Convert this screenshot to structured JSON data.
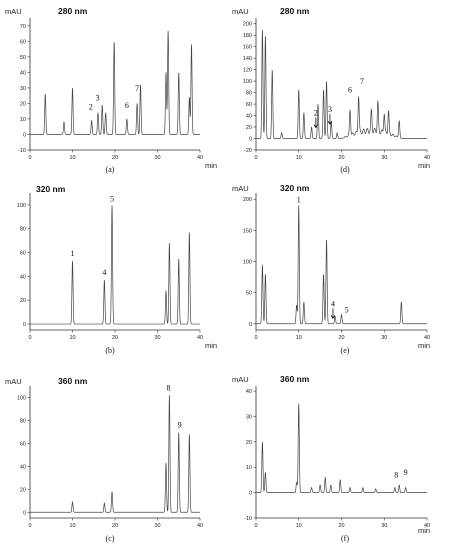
{
  "chart_data": [
    {
      "type": "line",
      "panel_label": "(a)",
      "wavelength_label": "280 nm",
      "ylabel": "mAU",
      "xlabel": "min",
      "xlim": [
        0,
        40
      ],
      "ylim": [
        -10,
        75
      ],
      "xticks": [
        0,
        10,
        20,
        30,
        40
      ],
      "yticks": [
        -10,
        0,
        10,
        20,
        30,
        40,
        50,
        60,
        70
      ],
      "grid": false,
      "baseline": 0,
      "peaks": [
        [
          3.6,
          26
        ],
        [
          8.0,
          8
        ],
        [
          10.0,
          30
        ],
        [
          14.5,
          9
        ],
        [
          16.0,
          14
        ],
        [
          17.0,
          19
        ],
        [
          17.8,
          14
        ],
        [
          19.8,
          60
        ],
        [
          22.8,
          10
        ],
        [
          25.2,
          20
        ],
        [
          26.0,
          32
        ],
        [
          32.0,
          40
        ],
        [
          32.5,
          67
        ],
        [
          35.0,
          40
        ],
        [
          37.5,
          24
        ],
        [
          38.0,
          58
        ]
      ],
      "annotations": [
        {
          "text": "2",
          "x": 14.3,
          "y": 16,
          "arrow": false
        },
        {
          "text": "3",
          "x": 15.9,
          "y": 22,
          "arrow": false
        },
        {
          "text": "6",
          "x": 22.8,
          "y": 17,
          "arrow": false
        },
        {
          "text": "7",
          "x": 25.2,
          "y": 28,
          "arrow": false
        }
      ]
    },
    {
      "type": "line",
      "panel_label": "(d)",
      "wavelength_label": "280 nm",
      "ylabel": "mAU",
      "xlabel": "min",
      "xlim": [
        0,
        40
      ],
      "ylim": [
        -20,
        210
      ],
      "xticks": [
        0,
        10,
        20,
        30,
        40
      ],
      "yticks": [
        -20,
        0,
        20,
        40,
        60,
        80,
        100,
        120,
        140,
        160,
        180,
        200
      ],
      "grid": false,
      "baseline": 0,
      "peaks": [
        [
          1.5,
          190
        ],
        [
          2.2,
          180
        ],
        [
          3.8,
          120
        ],
        [
          6.0,
          10
        ],
        [
          10.0,
          85
        ],
        [
          11.2,
          45
        ],
        [
          13.0,
          20
        ],
        [
          14.5,
          60
        ],
        [
          15.8,
          85
        ],
        [
          16.5,
          100
        ],
        [
          17.6,
          30
        ],
        [
          19.0,
          10
        ],
        [
          22.0,
          45
        ],
        [
          24.0,
          65
        ],
        [
          27.0,
          35
        ],
        [
          28.5,
          50
        ],
        [
          30.0,
          35
        ],
        [
          31.0,
          40
        ],
        [
          33.5,
          30
        ]
      ],
      "hump": {
        "from": 20,
        "to": 34,
        "height": 18
      },
      "annotations": [
        {
          "text": "2",
          "x": 14.0,
          "y": 40,
          "arrow": true
        },
        {
          "text": "3",
          "x": 17.3,
          "y": 46,
          "arrow": true
        },
        {
          "text": "6",
          "x": 22.0,
          "y": 80,
          "arrow": false
        },
        {
          "text": "7",
          "x": 24.8,
          "y": 95,
          "arrow": false
        }
      ]
    },
    {
      "type": "line",
      "panel_label": "(b)",
      "wavelength_label": "320 nm",
      "ylabel": "",
      "xlabel": "min",
      "xlim": [
        0,
        40
      ],
      "ylim": [
        -5,
        110
      ],
      "xticks": [
        0,
        10,
        20,
        30,
        40
      ],
      "yticks": [
        0,
        20,
        40,
        60,
        80,
        100
      ],
      "grid": false,
      "baseline": 0,
      "peaks": [
        [
          10.0,
          53
        ],
        [
          17.5,
          37
        ],
        [
          19.3,
          100
        ],
        [
          32.0,
          28
        ],
        [
          32.8,
          68
        ],
        [
          35.0,
          55
        ],
        [
          37.5,
          77
        ]
      ],
      "annotations": [
        {
          "text": "1",
          "x": 10.0,
          "y": 57,
          "arrow": false
        },
        {
          "text": "4",
          "x": 17.5,
          "y": 41,
          "arrow": false
        },
        {
          "text": "5",
          "x": 19.3,
          "y": 103,
          "arrow": false
        }
      ]
    },
    {
      "type": "line",
      "panel_label": "(e)",
      "wavelength_label": "320 nm",
      "ylabel": "mAU",
      "xlabel": "min",
      "xlim": [
        0,
        40
      ],
      "ylim": [
        -10,
        210
      ],
      "xticks": [
        0,
        10,
        20,
        30,
        40
      ],
      "yticks": [
        0,
        50,
        100,
        150,
        200
      ],
      "grid": false,
      "baseline": 0,
      "peaks": [
        [
          1.5,
          95
        ],
        [
          2.2,
          80
        ],
        [
          9.5,
          30
        ],
        [
          10.0,
          190
        ],
        [
          11.2,
          35
        ],
        [
          15.8,
          80
        ],
        [
          16.5,
          135
        ],
        [
          18.5,
          12
        ],
        [
          20.0,
          15
        ],
        [
          34.0,
          35
        ]
      ],
      "annotations": [
        {
          "text": "1",
          "x": 10.0,
          "y": 195,
          "arrow": false
        },
        {
          "text": "4",
          "x": 18.0,
          "y": 28,
          "arrow": true
        },
        {
          "text": "5",
          "x": 21.2,
          "y": 18,
          "arrow": false
        }
      ]
    },
    {
      "type": "line",
      "panel_label": "(c)",
      "wavelength_label": "360 nm",
      "ylabel": "mAU",
      "xlabel": "",
      "xlim": [
        0,
        40
      ],
      "ylim": [
        -5,
        110
      ],
      "xticks": [
        0,
        10,
        20,
        30,
        40
      ],
      "yticks": [
        0,
        20,
        40,
        60,
        80,
        100
      ],
      "grid": false,
      "baseline": 0,
      "peaks": [
        [
          10.0,
          9
        ],
        [
          17.5,
          8
        ],
        [
          19.3,
          18
        ],
        [
          32.0,
          43
        ],
        [
          32.8,
          102
        ],
        [
          35.0,
          70
        ],
        [
          37.5,
          68
        ]
      ],
      "annotations": [
        {
          "text": "8",
          "x": 32.6,
          "y": 106,
          "arrow": false
        },
        {
          "text": "9",
          "x": 35.2,
          "y": 74,
          "arrow": false
        }
      ]
    },
    {
      "type": "line",
      "panel_label": "(f)",
      "wavelength_label": "360 nm",
      "ylabel": "mAU",
      "xlabel": "min",
      "xlim": [
        0,
        40
      ],
      "ylim": [
        -10,
        42
      ],
      "xticks": [
        0,
        10,
        20,
        30,
        40
      ],
      "yticks": [
        -10,
        0,
        10,
        20,
        30,
        40
      ],
      "grid": false,
      "baseline": 0,
      "peaks": [
        [
          1.5,
          20
        ],
        [
          2.2,
          8
        ],
        [
          9.5,
          4
        ],
        [
          10.0,
          35
        ],
        [
          13.0,
          2
        ],
        [
          15.0,
          3
        ],
        [
          16.2,
          6
        ],
        [
          17.5,
          3
        ],
        [
          19.7,
          5
        ],
        [
          22.0,
          2
        ],
        [
          25.0,
          2
        ],
        [
          28.0,
          1.5
        ],
        [
          32.5,
          2
        ],
        [
          33.5,
          3
        ],
        [
          35.0,
          2
        ]
      ],
      "annotations": [
        {
          "text": "8",
          "x": 32.8,
          "y": 6,
          "arrow": false
        },
        {
          "text": "9",
          "x": 35.0,
          "y": 7,
          "arrow": false
        }
      ]
    }
  ]
}
